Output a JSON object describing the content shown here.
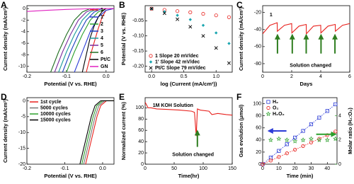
{
  "chart_data": [
    {
      "type": "line",
      "panel_label": "A",
      "xlabel": "Potential (V vs. RHE)",
      "ylabel": "Current density (mA/cm²)",
      "xlim": [
        -0.2,
        0.02
      ],
      "ylim": [
        -11,
        0.5
      ],
      "xticks": [
        -0.2,
        -0.1,
        {
          "value": 0,
          "label": "0.0"
        }
      ],
      "yticks": [
        0,
        -2,
        -4,
        -6,
        -8,
        -10
      ],
      "legend": "upper right",
      "series": [
        {
          "name": "1",
          "color": "#e8211d",
          "x": [
            -0.05,
            -0.035,
            -0.02,
            -0.01,
            0.0,
            0.02
          ],
          "values": [
            -11,
            -7,
            -3.5,
            -1.5,
            -0.3,
            0
          ]
        },
        {
          "name": "1'",
          "color": "#2b3bd6",
          "x": [
            -0.08,
            -0.06,
            -0.04,
            -0.02,
            0.0,
            0.02
          ],
          "values": [
            -11,
            -7.5,
            -4,
            -1.5,
            -0.3,
            0
          ]
        },
        {
          "name": "2",
          "color": "#2ca02c",
          "x": [
            -0.1,
            -0.08,
            -0.06,
            -0.04,
            -0.02,
            0.0
          ],
          "values": [
            -11,
            -7.5,
            -4.5,
            -2,
            -0.6,
            0
          ]
        },
        {
          "name": "3",
          "color": "#1f3fbf",
          "x": [
            -0.11,
            -0.09,
            -0.07,
            -0.05,
            -0.03,
            -0.01
          ],
          "values": [
            -11,
            -7.5,
            -4.5,
            -2,
            -0.6,
            0
          ]
        },
        {
          "name": "4",
          "color": "#1a9a9a",
          "x": [
            -0.12,
            -0.1,
            -0.08,
            -0.06,
            -0.04,
            -0.02
          ],
          "values": [
            -11,
            -7.5,
            -4.5,
            -2,
            -0.6,
            0
          ]
        },
        {
          "name": "5",
          "color": "#7b2a9e",
          "x": [
            -0.13,
            -0.11,
            -0.09,
            -0.07,
            -0.05,
            -0.03
          ],
          "values": [
            -11,
            -7.5,
            -4.5,
            -2,
            -0.6,
            0
          ]
        },
        {
          "name": "6",
          "color": "#1f6e1f",
          "x": [
            -0.14,
            -0.12,
            -0.1,
            -0.08,
            -0.06,
            -0.04
          ],
          "values": [
            -11,
            -7.5,
            -4.5,
            -2,
            -0.6,
            0
          ]
        },
        {
          "name": "Pt/C",
          "color": "#000000",
          "x": [
            -0.06,
            -0.05,
            -0.04,
            -0.03,
            -0.02,
            -0.01,
            0.0
          ],
          "values": [
            -11,
            -8,
            -5,
            -3,
            -1.5,
            -0.5,
            0
          ]
        },
        {
          "name": "GN",
          "color": "#e020c0",
          "x": [
            -0.2,
            -0.15,
            -0.1,
            -0.05,
            0.0,
            0.02
          ],
          "values": [
            -0.5,
            -0.3,
            -0.15,
            -0.05,
            0,
            0
          ]
        }
      ]
    },
    {
      "type": "scatter",
      "panel_label": "B",
      "xlabel": "log (Current (mA/cm²))",
      "ylabel": "Potential (V vs. RHE)",
      "xlim": [
        -0.1,
        1.25
      ],
      "ylim": [
        -0.22,
        0
      ],
      "xticks": [
        {
          "value": 0,
          "label": "0.0"
        },
        0.5,
        {
          "value": 1,
          "label": "1.0"
        }
      ],
      "yticks": [
        -0.05,
        {
          "value": -0.1,
          "label": "-0.10"
        },
        -0.15,
        {
          "value": -0.2,
          "label": "-0.20"
        }
      ],
      "legend": "lower left",
      "legend_text": "colored",
      "series": [
        {
          "name": "1  Slope 20 mV/dec",
          "color": "#e8211d",
          "marker": "circle",
          "x": [
            0,
            0.2,
            0.4,
            0.6,
            0.8,
            1.0,
            1.2
          ],
          "values": [
            -0.01,
            -0.014,
            -0.018,
            -0.022,
            -0.027,
            -0.032,
            -0.038
          ]
        },
        {
          "name": "1'  Slope 42 mV/dec",
          "color": "#1aa6b0",
          "marker": "diamond",
          "x": [
            0,
            0.2,
            0.4,
            0.6,
            0.8,
            1.0,
            1.2
          ],
          "values": [
            -0.01,
            -0.02,
            -0.032,
            -0.046,
            -0.065,
            -0.09,
            -0.125
          ]
        },
        {
          "name": "Pt/C  Slope 79 mV/dec",
          "color": "#000000",
          "marker": "x",
          "x": [
            0,
            0.2,
            0.4,
            0.6,
            0.8,
            1.0,
            1.2
          ],
          "values": [
            -0.01,
            -0.025,
            -0.045,
            -0.07,
            -0.1,
            -0.14,
            -0.19
          ]
        }
      ]
    },
    {
      "type": "line",
      "panel_label": "C",
      "xlabel": "Days",
      "ylabel": "Current density (mA/cm²)",
      "xlim": [
        0,
        6
      ],
      "ylim": [
        -90,
        -12
      ],
      "xticks": [
        0,
        2,
        4,
        6
      ],
      "yticks": [
        -20,
        -40,
        -60,
        -80
      ],
      "annotations": [
        {
          "text": "1",
          "color": "#e8211d"
        },
        {
          "text": "Solution changed",
          "color": "#2e7d1f"
        }
      ],
      "series": [
        {
          "color": "#e8211d",
          "x": [
            0,
            0.5,
            1,
            1.01,
            1.5,
            2,
            2.01,
            2.5,
            3,
            3.01,
            3.5,
            4,
            4.01,
            4.5,
            5,
            5.01,
            5.5,
            6
          ],
          "values": [
            -45,
            -35,
            -32,
            -42,
            -35,
            -33,
            -44,
            -36,
            -34,
            -45,
            -36,
            -35,
            -44,
            -36,
            -34,
            -42,
            -35,
            -33
          ]
        }
      ]
    },
    {
      "type": "line",
      "panel_label": "D",
      "xlabel": "Potential (V vs. RHE)",
      "ylabel": "Current density (mA/cm²)",
      "xlim": [
        -0.2,
        0.03
      ],
      "ylim": [
        -20,
        1
      ],
      "xticks": [
        -0.2,
        -0.1,
        {
          "value": 0,
          "label": "0.0"
        }
      ],
      "yticks": [
        0,
        -5,
        -10,
        -15,
        -20
      ],
      "legend": "upper left",
      "series": [
        {
          "name": "1st cycle",
          "color": "#e8211d",
          "x": [
            -0.045,
            -0.035,
            -0.025,
            -0.015,
            -0.005,
            0.01,
            0.03
          ],
          "values": [
            -20,
            -15,
            -10,
            -5,
            -1.5,
            0,
            0
          ]
        },
        {
          "name": "5000 cycles",
          "color": "#777777",
          "x": [
            -0.05,
            -0.04,
            -0.03,
            -0.02,
            -0.01,
            0.005,
            0.03
          ],
          "values": [
            -20,
            -15,
            -10,
            -5,
            -1.5,
            0,
            0
          ]
        },
        {
          "name": "10000 cycles",
          "color": "#2ca02c",
          "x": [
            -0.055,
            -0.045,
            -0.035,
            -0.025,
            -0.015,
            0.0,
            0.03
          ],
          "values": [
            -20,
            -15,
            -10,
            -5,
            -1.5,
            0,
            0
          ]
        },
        {
          "name": "15000 cycles",
          "color": "#000000",
          "x": [
            -0.06,
            -0.05,
            -0.04,
            -0.03,
            -0.02,
            -0.005,
            0.03
          ],
          "values": [
            -20,
            -15,
            -10,
            -5,
            -1.5,
            0,
            0
          ]
        }
      ]
    },
    {
      "type": "line",
      "panel_label": "E",
      "xlabel": "Time(hr)",
      "ylabel": "Normalized current (%)",
      "xlim": [
        0,
        150
      ],
      "ylim": [
        0,
        118
      ],
      "xticks": [
        0,
        50,
        100,
        150
      ],
      "yticks": [
        0,
        20,
        40,
        60,
        80,
        100
      ],
      "annotations": [
        {
          "text": "1M KOH Solution",
          "color": "#000000"
        },
        {
          "text": "Solution changed",
          "color": "#2e7d1f"
        }
      ],
      "series": [
        {
          "color": "#e8211d",
          "x": [
            0,
            5,
            10,
            20,
            40,
            60,
            80,
            85,
            88,
            90,
            95,
            110,
            115,
            125,
            140,
            150
          ],
          "values": [
            110,
            100,
            100,
            98,
            97,
            96,
            94,
            92,
            50,
            98,
            96,
            94,
            88,
            90,
            88,
            87
          ]
        }
      ]
    },
    {
      "type": "scatter",
      "panel_label": "F",
      "xlabel": "Time (min)",
      "ylabel": "Gas evolution (μmol)",
      "y2label": "Molar ratio (H₂:O₂)",
      "xlim": [
        0,
        46
      ],
      "ylim": [
        0,
        110
      ],
      "y2lim": [
        0,
        5.5
      ],
      "xticks": [
        0,
        10,
        20,
        30,
        40
      ],
      "yticks": [
        0,
        20,
        40,
        60,
        80,
        100
      ],
      "y2ticks": [
        0,
        2,
        4
      ],
      "legend": "upper left",
      "legend_text": "colored",
      "line_style": "dotted",
      "series": [
        {
          "name": "H₂",
          "color": "#2b3bd6",
          "marker": "square",
          "x": [
            0,
            5,
            10,
            15,
            20,
            25,
            30,
            35,
            40,
            45
          ],
          "values": [
            0,
            11,
            22,
            33,
            44,
            55,
            66,
            77,
            88,
            99
          ]
        },
        {
          "name": "O₂",
          "color": "#e8211d",
          "marker": "circle",
          "x": [
            0,
            5,
            10,
            15,
            20,
            25,
            30,
            35,
            40,
            45
          ],
          "values": [
            0,
            6,
            12,
            18,
            24,
            30,
            36,
            42,
            48,
            54
          ]
        },
        {
          "name": "H₂O₂",
          "color": "#2ca02c",
          "marker": "star",
          "axis": "y2",
          "x": [
            5,
            10,
            15,
            20,
            25,
            30,
            35,
            40,
            45
          ],
          "values": [
            2.0,
            2.1,
            2.0,
            1.9,
            2.0,
            2.1,
            2.0,
            2.0,
            2.1
          ]
        }
      ]
    }
  ]
}
